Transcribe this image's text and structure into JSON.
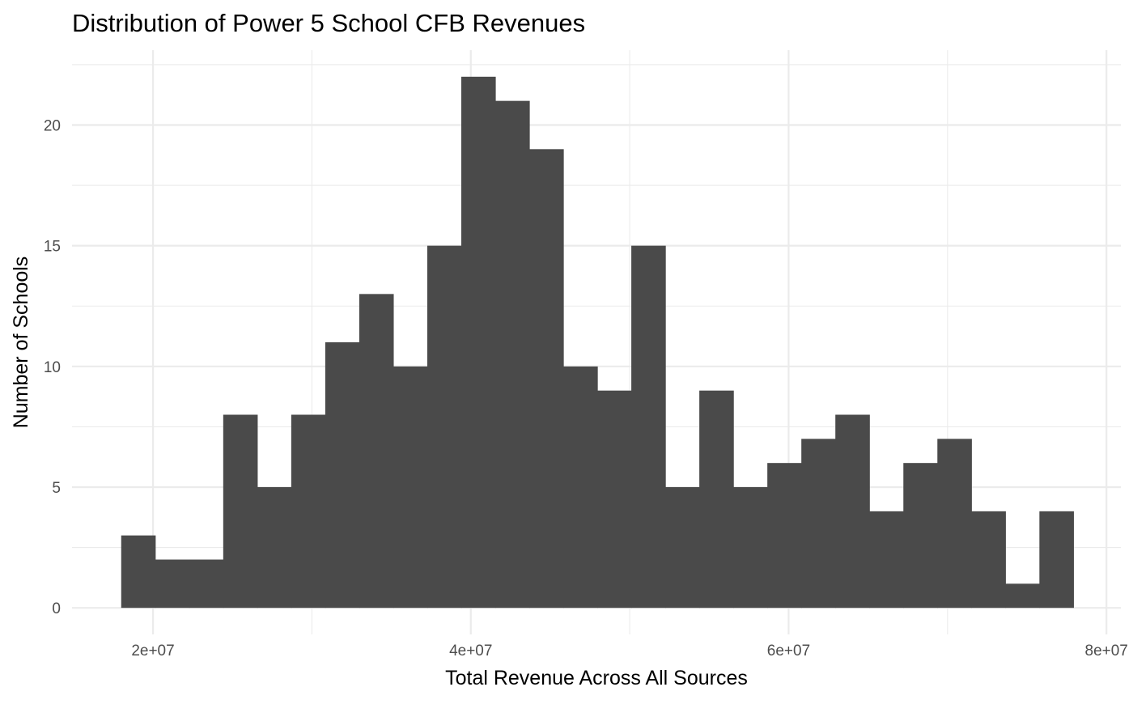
{
  "chart_data": {
    "type": "bar",
    "title": "Distribution of Power 5 School CFB Revenues",
    "xlabel": "Total Revenue Across All Sources",
    "ylabel": "Number of Schools",
    "xlim": [
      14906000,
      80906000
    ],
    "ylim": [
      -1.1,
      23.1
    ],
    "grid": true,
    "x_ticks": [
      {
        "value": 20000000,
        "label": "2e+07"
      },
      {
        "value": 40000000,
        "label": "4e+07"
      },
      {
        "value": 60000000,
        "label": "6e+07"
      },
      {
        "value": 80000000,
        "label": "8e+07"
      }
    ],
    "y_ticks": [
      {
        "value": 0,
        "label": "0"
      },
      {
        "value": 5,
        "label": "5"
      },
      {
        "value": 10,
        "label": "10"
      },
      {
        "value": 15,
        "label": "15"
      },
      {
        "value": 20,
        "label": "20"
      }
    ],
    "bin_start": 18000000,
    "bin_width": 2140000,
    "values": [
      3,
      2,
      2,
      8,
      5,
      8,
      11,
      13,
      10,
      15,
      22,
      21,
      19,
      10,
      9,
      15,
      5,
      9,
      5,
      6,
      7,
      8,
      4,
      6,
      7,
      4,
      1,
      4
    ],
    "bar_color": "#4a4a4a",
    "grid_color": "#ebebeb",
    "background_color": "#ffffff"
  }
}
